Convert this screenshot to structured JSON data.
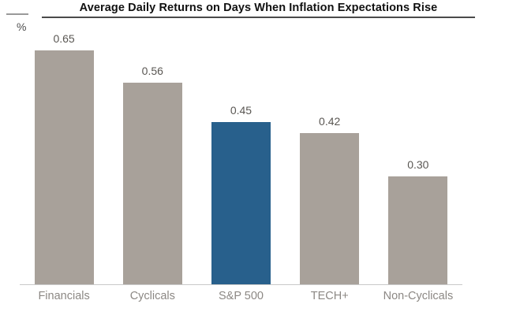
{
  "chart": {
    "title": "Average Daily Returns on Days When Inflation Expectations Rise",
    "unit_label": "%"
  },
  "chart_data": {
    "type": "bar",
    "title": "Average Daily Returns on Days When Inflation Expectations Rise",
    "categories": [
      "Financials",
      "Cyclicals",
      "S&P 500",
      "TECH+",
      "Non-Cyclicals"
    ],
    "values": [
      0.65,
      0.56,
      0.45,
      0.42,
      0.3
    ],
    "value_labels": [
      "0.65",
      "0.56",
      "0.45",
      "0.42",
      "0.30"
    ],
    "xlabel": "",
    "ylabel": "%",
    "ylim": [
      0,
      0.79
    ],
    "grid": false,
    "legend": false,
    "highlight_index": 2,
    "highlighted_category": "S&P 500",
    "colors": {
      "bar_default": "#a8a19a",
      "bar_highlight": "#28608c",
      "title_text": "#111111",
      "value_label_text": "#5a5753",
      "category_label_text": "#8c8884",
      "baseline": "#c9c9c9",
      "title_rule": "#4a4a4a",
      "tick_line": "#9a9a9a"
    }
  }
}
